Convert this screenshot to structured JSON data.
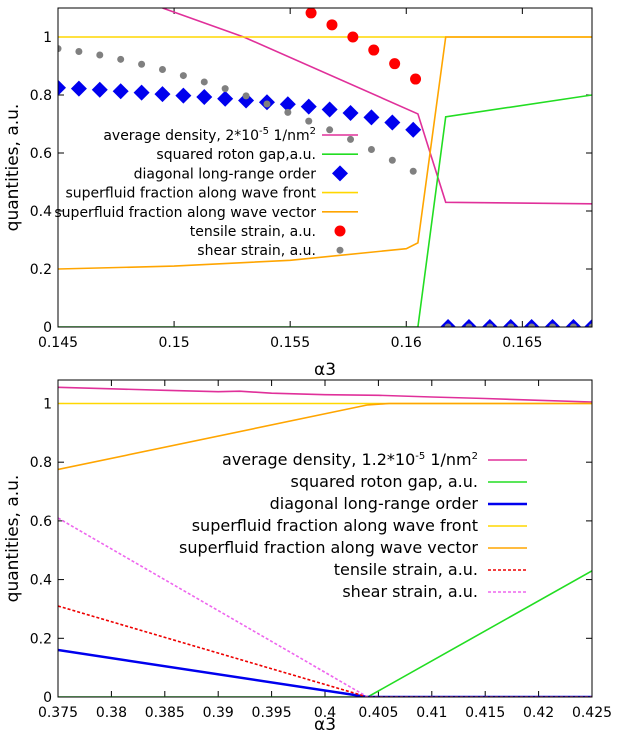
{
  "chart_data": [
    {
      "type": "line",
      "xlabel": "α3",
      "ylabel": "quantities, a.u.",
      "xlim": [
        0.145,
        0.168
      ],
      "ylim": [
        0,
        1.1
      ],
      "xticks": [
        0.145,
        0.15,
        0.155,
        0.16,
        0.165
      ],
      "xtick_labels": [
        "0.145",
        "0.15",
        "0.155",
        "0.16",
        "0.165"
      ],
      "yticks": [
        0,
        0.2,
        0.4,
        0.6,
        0.8,
        1
      ],
      "ytick_labels": [
        "0",
        "0.2",
        "0.4",
        "0.6",
        "0.8",
        "1"
      ],
      "legend_placement": "center-left",
      "series": [
        {
          "name": "average density, 2*10",
          "name_sup": "-5",
          "name_suffix": " 1/nm",
          "name_sup2": "2",
          "kind": "line",
          "color": "#e0309a",
          "x": [
            0.1495,
            0.153,
            0.1605,
            0.1617,
            0.168
          ],
          "y": [
            1.1,
            1.0,
            0.735,
            0.43,
            0.425
          ]
        },
        {
          "name": "squared roton gap,a.u.",
          "kind": "line",
          "color": "#22dd22",
          "x": [
            0.145,
            0.1605,
            0.1617,
            0.168
          ],
          "y": [
            0.0,
            0.0,
            0.725,
            0.8
          ]
        },
        {
          "name": "diagonal long-range order",
          "kind": "diamond",
          "color": "#0000ee",
          "x": [
            0.145,
            0.1459,
            0.1468,
            0.1477,
            0.1486,
            0.1495,
            0.1504,
            0.1513,
            0.1522,
            0.1531,
            0.154,
            0.1549,
            0.1558,
            0.1567,
            0.1576,
            0.1585,
            0.1594,
            0.1603,
            0.1618,
            0.1627,
            0.1636,
            0.1645,
            0.1654,
            0.1663,
            0.1672,
            0.168
          ],
          "y": [
            0.825,
            0.822,
            0.818,
            0.813,
            0.808,
            0.803,
            0.798,
            0.793,
            0.787,
            0.781,
            0.775,
            0.768,
            0.76,
            0.75,
            0.738,
            0.723,
            0.705,
            0.68,
            0.0,
            0.0,
            0.0,
            0.0,
            0.0,
            0.0,
            0.0,
            0.0
          ]
        },
        {
          "name": "superfluid fraction along wave front",
          "kind": "line",
          "color": "#ffd700",
          "x": [
            0.145,
            0.168
          ],
          "y": [
            1.0,
            1.0
          ]
        },
        {
          "name": "superfluid fraction along wave vector",
          "kind": "line",
          "color": "#ffa500",
          "x": [
            0.145,
            0.15,
            0.155,
            0.16,
            0.1605,
            0.1617,
            0.168
          ],
          "y": [
            0.2,
            0.21,
            0.23,
            0.27,
            0.29,
            1.0,
            1.0
          ]
        },
        {
          "name": "tensile strain, a.u.",
          "kind": "circle",
          "color": "#ff0000",
          "x": [
            0.1559,
            0.1568,
            0.1577,
            0.1586,
            0.1595,
            0.1604
          ],
          "y": [
            1.083,
            1.042,
            1.0,
            0.955,
            0.908,
            0.855
          ]
        },
        {
          "name": "shear strain, a.u.",
          "kind": "smallcircle",
          "color": "#808080",
          "x": [
            0.145,
            0.1459,
            0.1468,
            0.1477,
            0.1486,
            0.1495,
            0.1504,
            0.1513,
            0.1522,
            0.1531,
            0.154,
            0.1549,
            0.1558,
            0.1567,
            0.1576,
            0.1585,
            0.1594,
            0.1603,
            0.1618,
            0.1627,
            0.1636,
            0.1645,
            0.1654,
            0.1663,
            0.1672,
            0.168
          ],
          "y": [
            0.96,
            0.95,
            0.938,
            0.923,
            0.906,
            0.888,
            0.867,
            0.845,
            0.822,
            0.797,
            0.769,
            0.74,
            0.71,
            0.68,
            0.647,
            0.612,
            0.575,
            0.537,
            0.0,
            0.0,
            0.0,
            0.0,
            0.0,
            0.0,
            0.0,
            0.0
          ]
        }
      ]
    },
    {
      "type": "line",
      "xlabel": "α3",
      "ylabel": "quantities, a.u.",
      "xlim": [
        0.375,
        0.425
      ],
      "ylim": [
        0,
        1.08
      ],
      "xticks": [
        0.375,
        0.38,
        0.385,
        0.39,
        0.395,
        0.4,
        0.405,
        0.41,
        0.415,
        0.42,
        0.425
      ],
      "xtick_labels": [
        "0.375",
        "0.38",
        "0.385",
        "0.39",
        "0.395",
        "0.4",
        "0.405",
        "0.41",
        "0.415",
        "0.42",
        "0.425"
      ],
      "yticks": [
        0,
        0.2,
        0.4,
        0.6,
        0.8,
        1
      ],
      "ytick_labels": [
        "0",
        "0.2",
        "0.4",
        "0.6",
        "0.8",
        "1"
      ],
      "legend_placement": "right",
      "series": [
        {
          "name": "average density, 1.2*10",
          "name_sup": "-5",
          "name_suffix": " 1/nm",
          "name_sup2": "2",
          "kind": "line",
          "color": "#e0309a",
          "x": [
            0.375,
            0.38,
            0.385,
            0.39,
            0.392,
            0.395,
            0.4,
            0.405,
            0.41,
            0.415,
            0.42,
            0.425
          ],
          "y": [
            1.055,
            1.05,
            1.045,
            1.04,
            1.042,
            1.035,
            1.03,
            1.028,
            1.022,
            1.017,
            1.011,
            1.005
          ]
        },
        {
          "name": "squared roton gap, a.u.",
          "kind": "line",
          "color": "#22dd22",
          "x": [
            0.375,
            0.4035,
            0.404,
            0.425
          ],
          "y": [
            0.0,
            0.0,
            0.0,
            0.43
          ]
        },
        {
          "name": "diagonal long-range order",
          "kind": "line",
          "color": "#0000ee",
          "x": [
            0.375,
            0.404,
            0.425
          ],
          "y": [
            0.16,
            0.0,
            0.0
          ]
        },
        {
          "name": "superfluid fraction along wave front",
          "kind": "line",
          "color": "#ffd700",
          "x": [
            0.375,
            0.425
          ],
          "y": [
            1.0,
            1.0
          ]
        },
        {
          "name": "superfluid fraction along wave vector",
          "kind": "line",
          "color": "#ffa500",
          "x": [
            0.375,
            0.404,
            0.406,
            0.425
          ],
          "y": [
            0.775,
            0.995,
            1.0,
            1.0
          ]
        },
        {
          "name": "tensile strain, a.u.",
          "kind": "dashed",
          "color": "#ee0000",
          "x": [
            0.375,
            0.404,
            0.425
          ],
          "y": [
            0.31,
            0.0,
            0.0
          ]
        },
        {
          "name": "shear strain, a.u.",
          "kind": "dashed",
          "color": "#ee66ee",
          "x": [
            0.375,
            0.404,
            0.425
          ],
          "y": [
            0.61,
            0.0,
            0.0
          ]
        }
      ]
    }
  ]
}
